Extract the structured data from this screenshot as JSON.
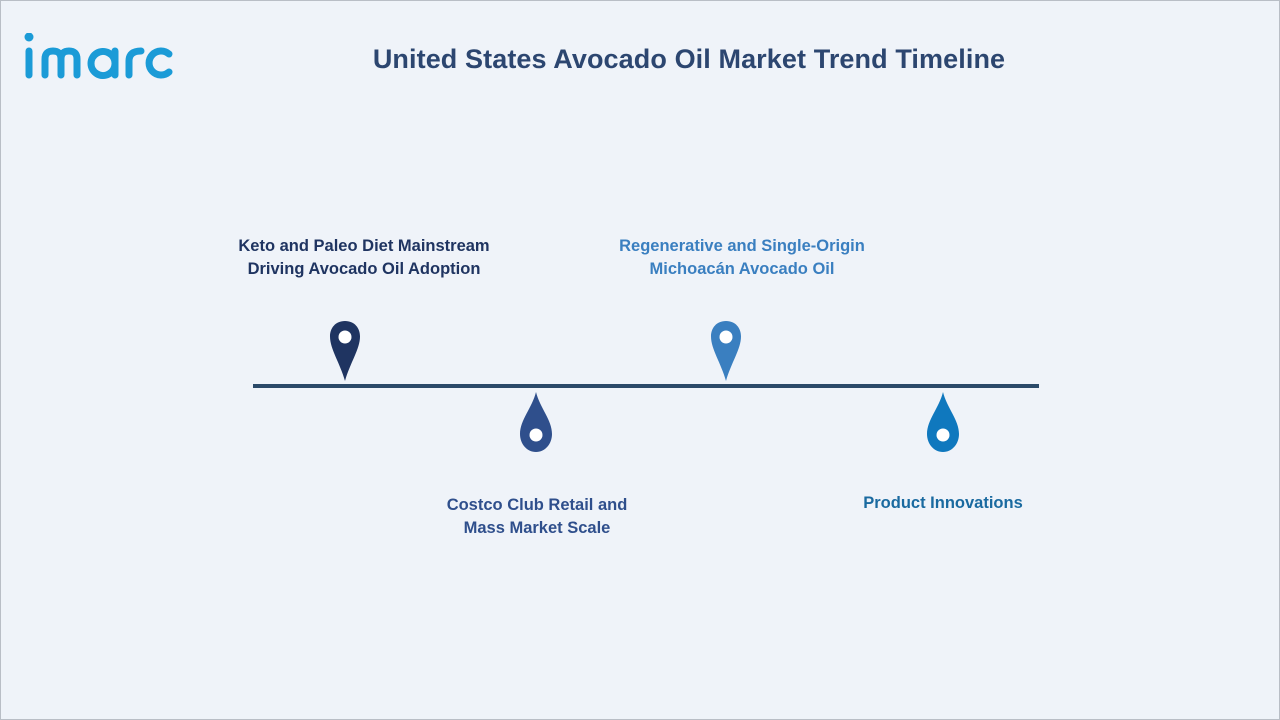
{
  "header": {
    "logo_text": "imarc",
    "title": "United States Avocado Oil Market Trend Timeline"
  },
  "colors": {
    "background": "#eff3f9",
    "title": "#2c4670",
    "line": "#2b4a69",
    "brand": "#1b9bd7"
  },
  "timeline": {
    "items": [
      {
        "label": "Keto and Paleo Diet Mainstream Driving Avocado Oil Adoption",
        "placement": "above",
        "color": "#1f3461",
        "text_color": "#1f3461"
      },
      {
        "label": "Costco Club Retail and Mass Market Scale",
        "placement": "below",
        "color": "#2f4f8c",
        "text_color": "#2f4f8c"
      },
      {
        "label": "Regenerative and Single-Origin Michoacán Avocado Oil",
        "placement": "above",
        "color": "#3a7fc0",
        "text_color": "#3a7fc0"
      },
      {
        "label": "Product Innovations",
        "placement": "below",
        "color": "#0f78be",
        "text_color": "#1a6aa0"
      }
    ]
  }
}
